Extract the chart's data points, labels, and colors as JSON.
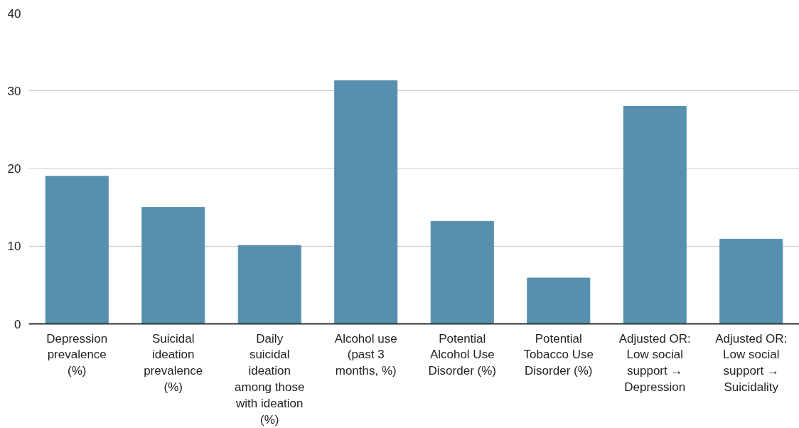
{
  "chart_data": {
    "type": "bar",
    "categories": [
      "Depression prevalence (%)",
      "Suicidal ideation prevalence (%)",
      "Daily suicidal ideation among those with ideation (%)",
      "Alcohol use (past 3 months, %)",
      "Potential Alcohol Use Disorder (%)",
      "Potential Tobacco Use Disorder (%)",
      "Adjusted OR: Low social support → Depression",
      "Adjusted OR: Low social support → Suicidality"
    ],
    "values": [
      19,
      15,
      10.1,
      31.3,
      13.2,
      5.9,
      28,
      10.9
    ],
    "color": "#5790ae",
    "ylim": [
      0,
      40
    ],
    "yticks": [
      0,
      10,
      20,
      30,
      40
    ],
    "grid": "y"
  }
}
